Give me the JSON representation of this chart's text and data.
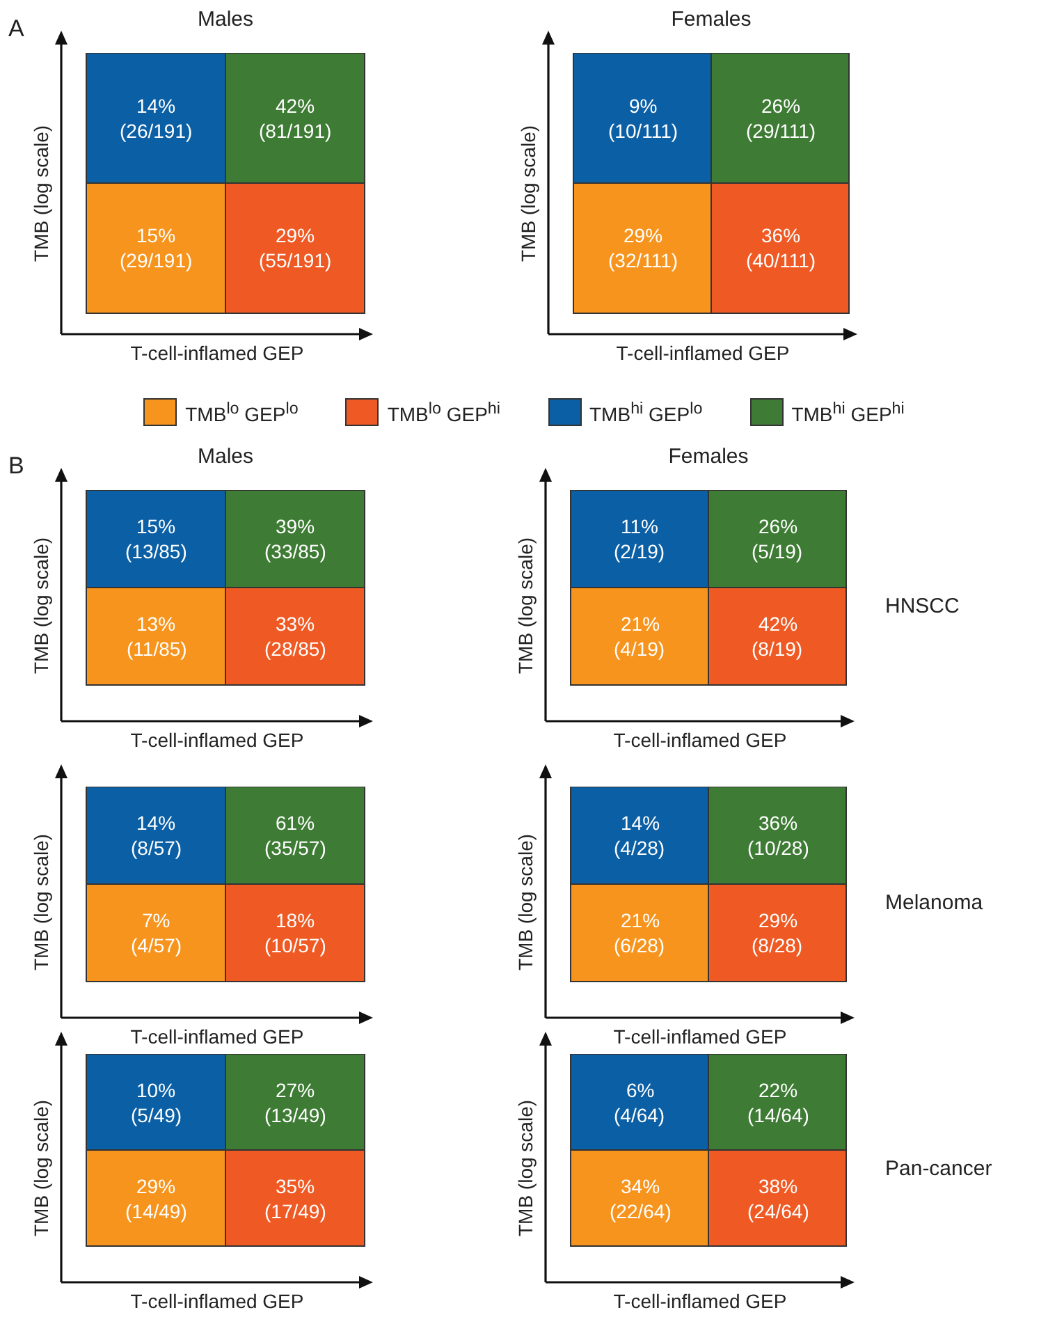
{
  "chart_data": [
    {
      "type": "other",
      "title": "Males",
      "xlabel": "T-cell-inflamed GEP",
      "ylabel": "TMB (log scale)",
      "categories": [
        null,
        null,
        null,
        null
      ],
      "values": [
        14,
        42,
        15,
        29
      ],
      "value_labels": [
        "14%\n(26/191)",
        "42%\n(81/191)",
        "15%\n(29/191)",
        "29%\n(55/191)"
      ],
      "colors": [
        "#0b5fa5",
        "#3e7b34",
        "#f7941d",
        "#ef5a24"
      ],
      "annotations": [
        "A"
      ]
    },
    {
      "type": "other",
      "title": "Females",
      "xlabel": "T-cell-inflamed GEP",
      "ylabel": "TMB (log scale)",
      "categories": [
        null,
        null,
        null,
        null
      ],
      "values": [
        9,
        26,
        29,
        36
      ],
      "value_labels": [
        "9%\n(10/111)",
        "26%\n(29/111)",
        "29%\n(32/111)",
        "36%\n(40/111)"
      ],
      "colors": [
        "#0b5fa5",
        "#3e7b34",
        "#f7941d",
        "#ef5a24"
      ]
    },
    {
      "type": "other",
      "categories": [
        "TMB$^{lo}$ GEP$^{lo}$",
        "TMB$^{lo}$ GEP$^{hi}$",
        "TMB$^{hi}$ GEP$^{lo}$",
        "TMB$^{hi}$ GEP$^{hi}$"
      ],
      "colors": [
        "#f7941d",
        "#ef5a24",
        "#0b5fa5",
        "#3e7b34"
      ]
    },
    {
      "type": "other",
      "title": "Males",
      "xlabel": "T-cell-inflamed GEP",
      "ylabel": "TMB (log scale)",
      "categories": [
        null,
        null,
        null,
        null
      ],
      "values": [
        15,
        39,
        13,
        33
      ],
      "value_labels": [
        "15%\n(13/85)",
        "39%\n(33/85)",
        "13%\n(11/85)",
        "33%\n(28/85)"
      ],
      "colors": [
        "#0b5fa5",
        "#3e7b34",
        "#f7941d",
        "#ef5a24"
      ],
      "annotations": [
        "B"
      ]
    },
    {
      "type": "other",
      "title": "Females",
      "xlabel": "T-cell-inflamed GEP",
      "ylabel": "TMB (log scale)",
      "categories": [
        null,
        null,
        null,
        null
      ],
      "values": [
        11,
        26,
        21,
        42
      ],
      "value_labels": [
        "11%\n(2/19)",
        "26%\n(5/19)",
        "21%\n(4/19)",
        "42%\n(8/19)"
      ],
      "colors": [
        "#0b5fa5",
        "#3e7b34",
        "#f7941d",
        "#ef5a24"
      ],
      "annotations": [
        "HNSCC"
      ]
    },
    {
      "type": "other",
      "xlabel": "T-cell-inflamed GEP",
      "ylabel": "TMB (log scale)",
      "categories": [
        null,
        null,
        null,
        null
      ],
      "values": [
        14,
        61,
        7,
        18
      ],
      "value_labels": [
        "14%\n(8/57)",
        "61%\n(35/57)",
        "7%\n(4/57)",
        "18%\n(10/57)"
      ],
      "colors": [
        "#0b5fa5",
        "#3e7b34",
        "#f7941d",
        "#ef5a24"
      ]
    },
    {
      "type": "other",
      "xlabel": "T-cell-inflamed GEP",
      "ylabel": "TMB (log scale)",
      "categories": [
        null,
        null,
        null,
        null
      ],
      "values": [
        14,
        36,
        21,
        29
      ],
      "value_labels": [
        "14%\n(4/28)",
        "36%\n(10/28)",
        "21%\n(6/28)",
        "29%\n(8/28)"
      ],
      "colors": [
        "#0b5fa5",
        "#3e7b34",
        "#f7941d",
        "#ef5a24"
      ],
      "annotations": [
        "Melanoma"
      ]
    },
    {
      "type": "other",
      "xlabel": "T-cell-inflamed GEP",
      "ylabel": "TMB (log scale)",
      "categories": [
        null,
        null,
        null,
        null
      ],
      "values": [
        10,
        27,
        29,
        35
      ],
      "value_labels": [
        "10%\n(5/49)",
        "27%\n(13/49)",
        "29%\n(14/49)",
        "35%\n(17/49)"
      ],
      "colors": [
        "#0b5fa5",
        "#3e7b34",
        "#f7941d",
        "#ef5a24"
      ]
    },
    {
      "type": "other",
      "xlabel": "T-cell-inflamed GEP",
      "ylabel": "TMB (log scale)",
      "categories": [
        null,
        null,
        null,
        null
      ],
      "values": [
        6,
        22,
        34,
        38
      ],
      "value_labels": [
        "6%\n(4/64)",
        "22%\n(14/64)",
        "34%\n(22/64)",
        "38%\n(24/64)"
      ],
      "colors": [
        "#0b5fa5",
        "#3e7b34",
        "#f7941d",
        "#ef5a24"
      ],
      "annotations": [
        "Pan-cancer"
      ]
    }
  ]
}
